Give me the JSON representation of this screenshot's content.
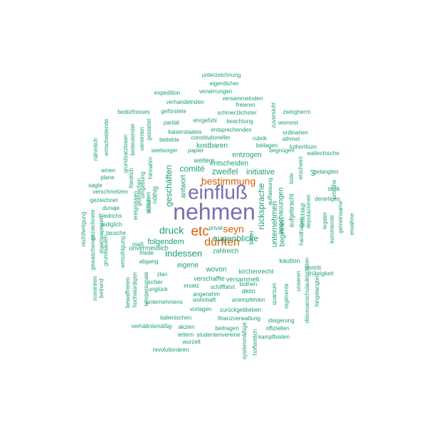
{
  "colors": {
    "background": "#ffffff",
    "purple": "#7570b3",
    "orange": "#d95f02",
    "teal": "#1b9e77"
  },
  "words": [
    {
      "text": "nehmen",
      "color": "purple"
    },
    {
      "text": "einfluß",
      "color": "purple"
    },
    {
      "text": "etc",
      "color": "orange"
    },
    {
      "text": "dürften",
      "color": "orange"
    },
    {
      "text": "seyn",
      "color": "orange"
    },
    {
      "text": "bestimmung",
      "color": "orange"
    },
    {
      "text": "druck",
      "color": "teal"
    },
    {
      "text": "indessen",
      "color": "teal"
    },
    {
      "text": "augenblicke",
      "color": "teal"
    },
    {
      "text": "zweifel",
      "color": "teal"
    },
    {
      "text": "comité",
      "color": "teal"
    },
    {
      "text": "geschäften",
      "color": "teal"
    },
    {
      "text": "rücksprache",
      "color": "teal"
    },
    {
      "text": "unternehmen",
      "color": "teal"
    },
    {
      "text": "initiative",
      "color": "teal"
    },
    {
      "text": "folgendem",
      "color": "teal"
    },
    {
      "text": "wovon",
      "color": "teal"
    },
    {
      "text": "eigene",
      "color": "teal"
    },
    {
      "text": "zahlreich",
      "color": "teal"
    },
    {
      "text": "antwort",
      "color": "teal"
    },
    {
      "text": "beginnen",
      "color": "teal"
    },
    {
      "text": "anschauungen",
      "color": "teal"
    },
    {
      "text": "kostbaren",
      "color": "teal"
    },
    {
      "text": "entzogen",
      "color": "teal"
    },
    {
      "text": "entscheiden",
      "color": "teal"
    },
    {
      "text": "weitere",
      "color": "teal"
    },
    {
      "text": "nöthig",
      "color": "teal"
    },
    {
      "text": "unvermeidlich",
      "color": "teal"
    },
    {
      "text": "aufgebracht",
      "color": "teal"
    },
    {
      "text": "kirchenrecht",
      "color": "teal"
    },
    {
      "text": "verschaffte",
      "color": "teal"
    },
    {
      "text": "versammelt",
      "color": "teal"
    },
    {
      "text": "kaution",
      "color": "teal"
    },
    {
      "text": "unterzeichnung",
      "color": "teal"
    },
    {
      "text": "eigentlicher",
      "color": "teal"
    },
    {
      "text": "verwirrungen",
      "color": "teal"
    },
    {
      "text": "expedition",
      "color": "teal"
    },
    {
      "text": "versammelnden",
      "color": "teal"
    },
    {
      "text": "verhandelnden",
      "color": "teal"
    },
    {
      "text": "freieren",
      "color": "teal"
    },
    {
      "text": "bedürfnisses",
      "color": "teal"
    },
    {
      "text": "gefürstete",
      "color": "teal"
    },
    {
      "text": "schmerzlichster",
      "color": "teal"
    },
    {
      "text": "zwingherrn",
      "color": "teal"
    },
    {
      "text": "parität",
      "color": "teal"
    },
    {
      "text": "ehrgefühl",
      "color": "teal"
    },
    {
      "text": "beachtung",
      "color": "teal"
    },
    {
      "text": "wornost",
      "color": "teal"
    },
    {
      "text": "kaiserstaates",
      "color": "teal"
    },
    {
      "text": "entsprechenden",
      "color": "teal"
    },
    {
      "text": "ordinarien",
      "color": "teal"
    },
    {
      "text": "beliebte",
      "color": "teal"
    },
    {
      "text": "constitutioneller",
      "color": "teal"
    },
    {
      "text": "rubrik",
      "color": "teal"
    },
    {
      "text": "athmet",
      "color": "teal"
    },
    {
      "text": "beilagen",
      "color": "teal"
    },
    {
      "text": "lutherthum",
      "color": "teal"
    },
    {
      "text": "seelsorger",
      "color": "teal"
    },
    {
      "text": "papier",
      "color": "teal"
    },
    {
      "text": "begnügen",
      "color": "teal"
    },
    {
      "text": "wallechische",
      "color": "teal"
    },
    {
      "text": "zuversicht",
      "color": "teal"
    },
    {
      "text": "nähmlich",
      "color": "teal"
    },
    {
      "text": "entscheidende",
      "color": "teal"
    },
    {
      "text": "grundsatzlosen",
      "color": "teal"
    },
    {
      "text": "bedeutender",
      "color": "teal"
    },
    {
      "text": "vereinten",
      "color": "teal"
    },
    {
      "text": "gestattet",
      "color": "teal"
    },
    {
      "text": "amen",
      "color": "teal"
    },
    {
      "text": "plane",
      "color": "teal"
    },
    {
      "text": "friedrich",
      "color": "teal"
    },
    {
      "text": "hinnahm",
      "color": "teal"
    },
    {
      "text": "sagte",
      "color": "teal"
    },
    {
      "text": "verschmelzen",
      "color": "teal"
    },
    {
      "text": "glorreichen",
      "color": "teal"
    },
    {
      "text": "gezeichnet",
      "color": "teal"
    },
    {
      "text": "dunaje",
      "color": "teal"
    },
    {
      "text": "friedrichs",
      "color": "teal"
    },
    {
      "text": "lediglich",
      "color": "teal"
    },
    {
      "text": "tausche",
      "color": "teal"
    },
    {
      "text": "sittlichen",
      "color": "teal"
    },
    {
      "text": "umgebung",
      "color": "teal"
    },
    {
      "text": "ereignissen",
      "color": "teal"
    },
    {
      "text": "zuviel",
      "color": "teal"
    },
    {
      "text": "maß",
      "color": "teal"
    },
    {
      "text": "friede",
      "color": "teal"
    },
    {
      "text": "abgang",
      "color": "teal"
    },
    {
      "text": "zlan",
      "color": "teal"
    },
    {
      "text": "schier",
      "color": "teal"
    },
    {
      "text": "unglück",
      "color": "teal"
    },
    {
      "text": "ersatz",
      "color": "teal"
    },
    {
      "text": "angenehm",
      "color": "teal"
    },
    {
      "text": "unternehmens",
      "color": "teal"
    },
    {
      "text": "wohnhaft",
      "color": "teal"
    },
    {
      "text": "vorlagen",
      "color": "teal"
    },
    {
      "text": "zurückgeblieben",
      "color": "teal"
    },
    {
      "text": "italienischen",
      "color": "teal"
    },
    {
      "text": "finanzverwaltung",
      "color": "teal"
    },
    {
      "text": "verhältnismäßig",
      "color": "teal"
    },
    {
      "text": "akzien",
      "color": "teal"
    },
    {
      "text": "beitragen",
      "color": "teal"
    },
    {
      "text": "lettern",
      "color": "teal"
    },
    {
      "text": "studentenvereine",
      "color": "teal"
    },
    {
      "text": "wurzelt",
      "color": "teal"
    },
    {
      "text": "revolutionären",
      "color": "teal"
    },
    {
      "text": "anempfehlen",
      "color": "teal"
    },
    {
      "text": "steigerung",
      "color": "teal"
    },
    {
      "text": "offiziellen",
      "color": "teal"
    },
    {
      "text": "kampfboden",
      "color": "teal"
    },
    {
      "text": "schifffahrt",
      "color": "teal"
    },
    {
      "text": "bothen",
      "color": "teal"
    },
    {
      "text": "diktirt",
      "color": "teal"
    },
    {
      "text": "vertritt",
      "color": "teal"
    },
    {
      "text": "frührigkeit",
      "color": "teal"
    },
    {
      "text": "anschlägt",
      "color": "teal"
    },
    {
      "text": "handhaben",
      "color": "teal"
    },
    {
      "text": "auffassung",
      "color": "teal"
    },
    {
      "text": "bildet",
      "color": "teal"
    },
    {
      "text": "privat",
      "color": "teal"
    },
    {
      "text": "tode",
      "color": "teal"
    },
    {
      "text": "od",
      "color": "teal"
    },
    {
      "text": "erscheint",
      "color": "teal"
    },
    {
      "text": "gelangten",
      "color": "teal"
    },
    {
      "text": "umrühe",
      "color": "teal"
    },
    {
      "text": "stník",
      "color": "teal"
    },
    {
      "text": "derartiges",
      "color": "teal"
    },
    {
      "text": "legaler",
      "color": "teal"
    },
    {
      "text": "kommende",
      "color": "teal"
    },
    {
      "text": "gemeinsame",
      "color": "teal"
    },
    {
      "text": "erwähne",
      "color": "teal"
    },
    {
      "text": "deputazionen",
      "color": "teal"
    },
    {
      "text": "diöcesanschulauktoritäten",
      "color": "teal"
    },
    {
      "text": "hingelangten",
      "color": "teal"
    },
    {
      "text": "unseren",
      "color": "teal"
    },
    {
      "text": "regimente",
      "color": "teal"
    },
    {
      "text": "quantum",
      "color": "teal"
    },
    {
      "text": "systemmäßige",
      "color": "teal"
    },
    {
      "text": "hoffentlich",
      "color": "teal"
    },
    {
      "text": "rechtfertigung",
      "color": "teal"
    },
    {
      "text": "gezeichnete",
      "color": "teal"
    },
    {
      "text": "staatspapieren",
      "color": "teal"
    },
    {
      "text": "gewaschenen",
      "color": "teal"
    },
    {
      "text": "grundsäulen",
      "color": "teal"
    },
    {
      "text": "nominiren",
      "color": "teal"
    },
    {
      "text": "betrend",
      "color": "teal"
    },
    {
      "text": "bewaffneten",
      "color": "teal"
    },
    {
      "text": "hochwürdigen",
      "color": "teal"
    },
    {
      "text": "ermuthigung",
      "color": "teal"
    },
    {
      "text": "lehrpersonale",
      "color": "teal"
    },
    {
      "text": "aktien",
      "color": "teal"
    },
    {
      "text": "bibliothek",
      "color": "teal"
    }
  ]
}
